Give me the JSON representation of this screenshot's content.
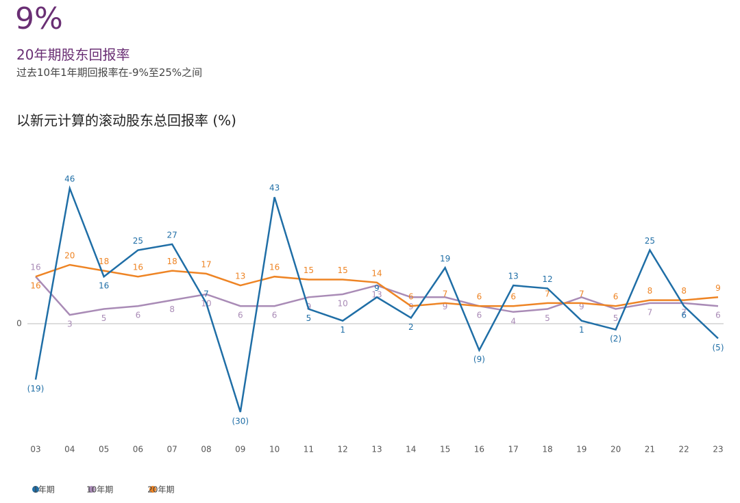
{
  "header": {
    "value": "9%",
    "subtitle": "20年期股东回报率",
    "note": "过去10年1年期回报率在-9%至25%之间"
  },
  "chart_data": {
    "type": "line",
    "title": "以新元计算的滚动股东总回报率 (%)",
    "categories": [
      "03",
      "04",
      "05",
      "06",
      "07",
      "08",
      "09",
      "10",
      "11",
      "12",
      "13",
      "14",
      "15",
      "16",
      "17",
      "18",
      "19",
      "20",
      "21",
      "22",
      "23"
    ],
    "series": [
      {
        "name": "1年期",
        "color": "#1f6ea6",
        "values": [
          -19,
          46,
          16,
          25,
          27,
          7,
          -30,
          43,
          5,
          1,
          9,
          2,
          19,
          -9,
          13,
          12,
          1,
          -2,
          25,
          6,
          -5
        ],
        "value_labels": [
          "(19)",
          "46",
          "16",
          "25",
          "27",
          "7",
          "(30)",
          "43",
          "5",
          "1",
          "9",
          "2",
          "19",
          "(9)",
          "13",
          "12",
          "1",
          "(2)",
          "25",
          "6",
          "(5)"
        ]
      },
      {
        "name": "10年期",
        "color": "#a98bb6",
        "values": [
          16,
          3,
          5,
          6,
          8,
          10,
          6,
          6,
          9,
          10,
          13,
          9,
          9,
          6,
          4,
          5,
          9,
          5,
          7,
          7,
          6
        ]
      },
      {
        "name": "20年期",
        "color": "#ee8424",
        "values": [
          16,
          20,
          18,
          16,
          18,
          17,
          13,
          16,
          15,
          15,
          14,
          6,
          7,
          6,
          6,
          7,
          7,
          6,
          8,
          8,
          9
        ]
      }
    ],
    "ylim": [
      -35,
      50
    ],
    "yticks": [
      0
    ]
  }
}
